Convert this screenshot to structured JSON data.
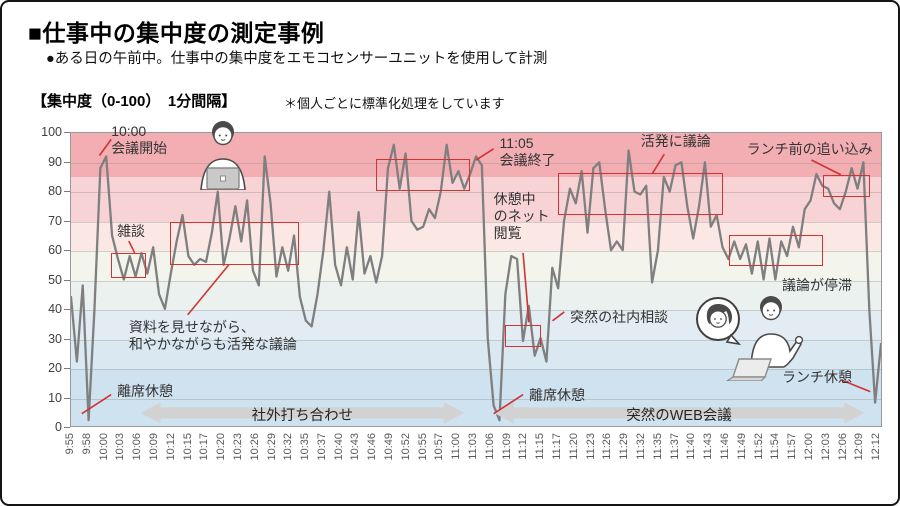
{
  "frame": {
    "title": "■仕事中の集中度の測定事例",
    "subtitle": "●ある日の午前中。仕事中の集中度をエモコセンサーユニットを使用して計測",
    "axis_note": "【集中度（0-100）　1分間隔】",
    "standardize_note": "＊個人ごとに標準化処理をしています"
  },
  "chart_data": {
    "type": "line",
    "title": "集中度（0-100） 1分間隔",
    "ylabel": "集中度",
    "ylim": [
      0,
      100
    ],
    "y_ticks": [
      0,
      10,
      20,
      30,
      40,
      50,
      60,
      70,
      80,
      90,
      100
    ],
    "x_start": "9:55",
    "interval_minutes": 1,
    "total_minutes": 138,
    "x_tick_labels": [
      "9:55",
      "9:58",
      "10:00",
      "10:03",
      "10:06",
      "10:09",
      "10:12",
      "10:15",
      "10:17",
      "10:20",
      "10:23",
      "10:26",
      "10:29",
      "10:32",
      "10:35",
      "10:37",
      "10:40",
      "10:43",
      "10:46",
      "10:49",
      "10:52",
      "10:55",
      "10:57",
      "11:00",
      "11:03",
      "11:06",
      "11:09",
      "11:12",
      "11:15",
      "11:17",
      "11:20",
      "11:23",
      "11:26",
      "11:29",
      "11:32",
      "11:35",
      "11:37",
      "11:40",
      "11:43",
      "11:46",
      "11:49",
      "11:52",
      "11:54",
      "11:57",
      "12:00",
      "12:03",
      "12:06",
      "12:09",
      "12:12"
    ],
    "series": [
      {
        "name": "集中度",
        "color": "#7f7f7f",
        "values": [
          44,
          22,
          48,
          2,
          40,
          88,
          92,
          65,
          57,
          50,
          58,
          51,
          59,
          52,
          61,
          45,
          40,
          52,
          63,
          72,
          58,
          55,
          57,
          56,
          66,
          80,
          55,
          64,
          75,
          63,
          77,
          53,
          48,
          92,
          76,
          51,
          61,
          53,
          65,
          44,
          36,
          34,
          45,
          60,
          80,
          55,
          48,
          61,
          50,
          73,
          52,
          58,
          49,
          58,
          88,
          96,
          81,
          93,
          70,
          67,
          68,
          74,
          71,
          80,
          96,
          83,
          87,
          81,
          86,
          92,
          89,
          30,
          7,
          2,
          45,
          58,
          57,
          29,
          41,
          24,
          30,
          22,
          54,
          47,
          70,
          81,
          76,
          87,
          66,
          88,
          90,
          74,
          60,
          63,
          60,
          94,
          80,
          79,
          82,
          49,
          60,
          85,
          80,
          89,
          90,
          75,
          64,
          75,
          90,
          68,
          72,
          61,
          57,
          63,
          57,
          62,
          52,
          63,
          50,
          64,
          50,
          63,
          58,
          68,
          61,
          74,
          77,
          86,
          82,
          81,
          76,
          74,
          80,
          88,
          81,
          90,
          40,
          8,
          28
        ]
      }
    ],
    "bands": [
      {
        "from": 85,
        "to": 100,
        "color": "#f3aeb4"
      },
      {
        "from": 70,
        "to": 85,
        "color": "#f8d3d5"
      },
      {
        "from": 60,
        "to": 70,
        "color": "#fbe8e5"
      },
      {
        "from": 50,
        "to": 60,
        "color": "#f3f4ec"
      },
      {
        "from": 40,
        "to": 50,
        "color": "#ebf1ee"
      },
      {
        "from": 30,
        "to": 40,
        "color": "#e2ecf2"
      },
      {
        "from": 20,
        "to": 30,
        "color": "#d9e8f1"
      },
      {
        "from": 0,
        "to": 20,
        "color": "#cfe2ef"
      }
    ],
    "grid": true,
    "legend": "none",
    "highlight_boxes": [
      {
        "id": "zatsudan-box",
        "t0": "10:02",
        "t1": "10:08",
        "v0": 50.5,
        "v1": 59
      },
      {
        "id": "shiryo-box",
        "t0": "10:12",
        "t1": "10:34",
        "v0": 55,
        "v1": 69.5
      },
      {
        "id": "kaigi-end-box",
        "t0": "10:47",
        "t1": "11:03",
        "v0": 80,
        "v1": 91
      },
      {
        "id": "net-box",
        "t0": "11:09",
        "t1": "11:15",
        "v0": 27,
        "v1": 34.5
      },
      {
        "id": "kappatsu-box",
        "t0": "11:18",
        "t1": "11:46",
        "v0": 72,
        "v1": 86
      },
      {
        "id": "teitai-box",
        "t0": "11:47",
        "t1": "12:03",
        "v0": 54.5,
        "v1": 65
      },
      {
        "id": "lunch-rush-box",
        "t0": "12:03",
        "t1": "12:11",
        "v0": 78,
        "v1": 85.5
      }
    ],
    "annotations": [
      {
        "id": "kaigi-start",
        "lines": [
          "10:00",
          "会議開始"
        ],
        "t": "10:02",
        "v": 103,
        "pointer": [
          "10:00",
          92,
          "10:02",
          97.5
        ]
      },
      {
        "id": "zatsudan",
        "lines": [
          "雑談"
        ],
        "t": "10:03",
        "v": 69,
        "pointer": [
          "10:05",
          63,
          "10:06",
          59
        ]
      },
      {
        "id": "shiryo",
        "lines": [
          "資料を見せながら、",
          "和やかながらも活発な議論"
        ],
        "t": "10:05",
        "v": 36.5,
        "pointer": [
          "10:15",
          38,
          "10:22",
          55
        ]
      },
      {
        "id": "kaigi-end",
        "lines": [
          "11:05",
          "会議終了"
        ],
        "t": "11:08",
        "v": 99,
        "pointer": [
          "11:04",
          90.5,
          "11:07",
          94.3
        ]
      },
      {
        "id": "net-etsuran",
        "lines": [
          "休憩中",
          "のネット",
          "閲覧"
        ],
        "t": "11:07",
        "v": 80,
        "pointer": [
          "11:12",
          59,
          "11:13",
          35.5
        ]
      },
      {
        "id": "shanai-sodan",
        "lines": [
          "突然の社内相談"
        ],
        "t": "11:20",
        "v": 40,
        "pointer": [
          "11:17",
          36,
          "11:19",
          39
        ]
      },
      {
        "id": "kappatsu",
        "lines": [
          "活発に議論"
        ],
        "t": "11:32",
        "v": 99.5,
        "pointer": [
          "11:36",
          92.5,
          "11:34",
          86
        ]
      },
      {
        "id": "lunch-rush",
        "lines": [
          "ランチ前の追い込み"
        ],
        "t": "11:50",
        "v": 97,
        "pointer": [
          "12:01",
          90.5,
          "12:06",
          85.5
        ]
      },
      {
        "id": "teitai",
        "lines": [
          "議論が停滞"
        ],
        "t": "11:56",
        "v": 51,
        "pointer": null
      },
      {
        "id": "riseki-1",
        "lines": [
          "離席休憩"
        ],
        "t": "10:03",
        "v": 15,
        "pointer": [
          "9:57",
          4.5,
          "10:02",
          11
        ]
      },
      {
        "id": "riseki-2",
        "lines": [
          "離席休憩"
        ],
        "t": "11:13",
        "v": 13.5,
        "pointer": [
          "11:07",
          4.5,
          "11:12",
          11
        ]
      },
      {
        "id": "lunch-rest",
        "lines": [
          "ランチ休憩"
        ],
        "t": "11:56",
        "v": 19.5,
        "pointer": [
          "12:06",
          16,
          "12:11",
          12
        ]
      }
    ],
    "phase_arrows": [
      {
        "label": "社外打ち合わせ",
        "t0": "10:07",
        "t1": "11:02"
      },
      {
        "label": "突然のWEB会議",
        "t0": "11:07",
        "t1": "12:10"
      }
    ],
    "colors": {
      "annotation_red": "#d23333",
      "line_gray": "#7f7f7f",
      "arrow_gray": "#d2d2d2",
      "tick_label_gray": "#595959"
    }
  },
  "illustrations": [
    {
      "name": "worker-at-laptop"
    },
    {
      "name": "web-meeting-two-people"
    }
  ]
}
